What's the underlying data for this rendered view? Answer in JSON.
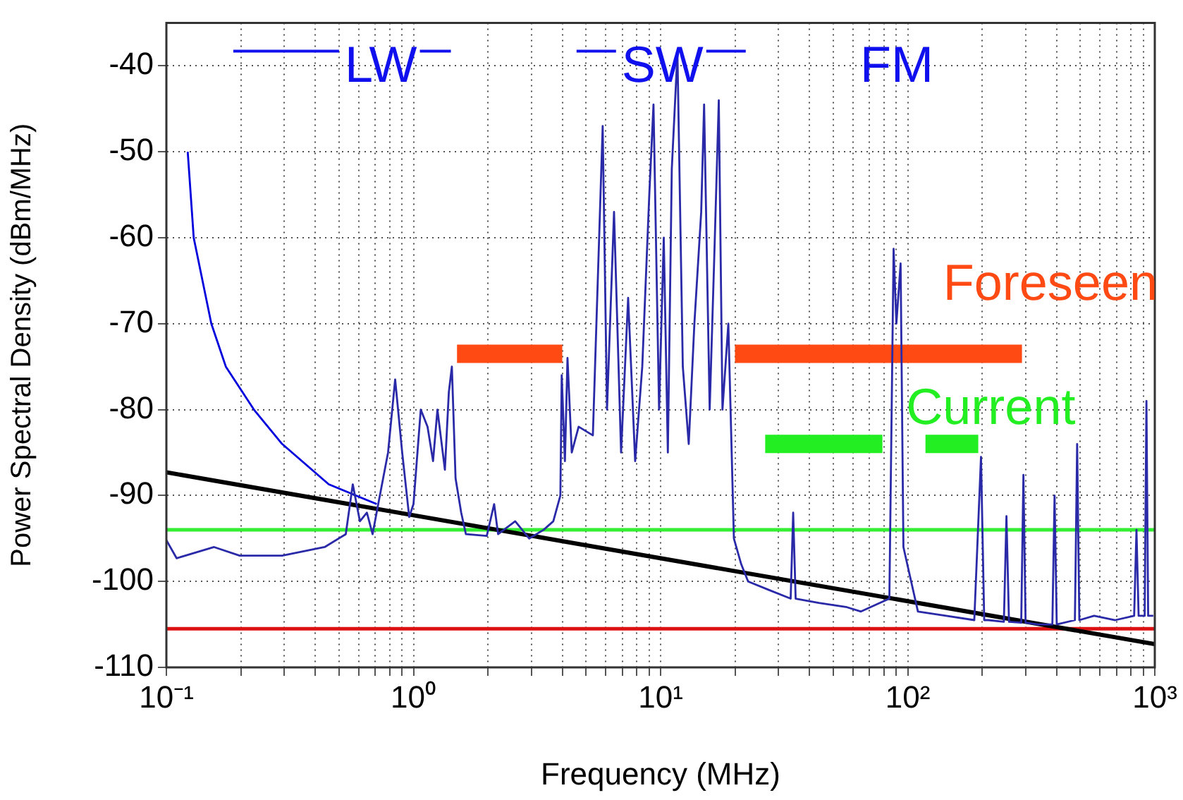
{
  "chart_data": {
    "type": "line",
    "xlabel": "Frequency (MHz)",
    "ylabel": "Power Spectral Density (dBm/MHz)",
    "log": "x",
    "grid": true,
    "legend": false,
    "marker": "none",
    "line_style": "solid",
    "xlim": [
      0.1,
      1000
    ],
    "ylim": [
      -110,
      -35
    ],
    "xticks": [
      {
        "value": 0.1,
        "label": "10⁻¹"
      },
      {
        "value": 0.2,
        "label": null
      },
      {
        "value": 0.3,
        "label": null
      },
      {
        "value": 0.4,
        "label": null
      },
      {
        "value": 0.5,
        "label": null
      },
      {
        "value": 0.6,
        "label": null
      },
      {
        "value": 0.7,
        "label": null
      },
      {
        "value": 0.8,
        "label": null
      },
      {
        "value": 0.9,
        "label": null
      },
      {
        "value": 1,
        "label": "10⁰"
      },
      {
        "value": 2,
        "label": null
      },
      {
        "value": 3,
        "label": null
      },
      {
        "value": 4,
        "label": null
      },
      {
        "value": 5,
        "label": null
      },
      {
        "value": 6,
        "label": null
      },
      {
        "value": 7,
        "label": null
      },
      {
        "value": 8,
        "label": null
      },
      {
        "value": 9,
        "label": null
      },
      {
        "value": 10,
        "label": "10¹"
      },
      {
        "value": 20,
        "label": null
      },
      {
        "value": 30,
        "label": null
      },
      {
        "value": 40,
        "label": null
      },
      {
        "value": 50,
        "label": null
      },
      {
        "value": 60,
        "label": null
      },
      {
        "value": 70,
        "label": null
      },
      {
        "value": 80,
        "label": null
      },
      {
        "value": 90,
        "label": null
      },
      {
        "value": 100,
        "label": "10²"
      },
      {
        "value": 200,
        "label": null
      },
      {
        "value": 300,
        "label": null
      },
      {
        "value": 400,
        "label": null
      },
      {
        "value": 500,
        "label": null
      },
      {
        "value": 600,
        "label": null
      },
      {
        "value": 700,
        "label": null
      },
      {
        "value": 800,
        "label": null
      },
      {
        "value": 900,
        "label": null
      },
      {
        "value": 1000,
        "label": "10³"
      }
    ],
    "yticks": [
      -110,
      -100,
      -90,
      -80,
      -70,
      -60,
      -50,
      -40
    ],
    "series": [
      {
        "color": "#2a2aa8",
        "x": [
          0.1,
          0.11,
          0.156,
          0.198,
          0.294,
          0.437,
          0.532,
          0.568,
          0.607,
          0.648,
          0.683,
          0.72,
          0.789,
          0.843,
          0.9,
          0.961,
          1.0,
          1.07,
          1.14,
          1.2,
          1.25,
          1.34,
          1.39,
          1.43,
          1.48,
          1.56,
          1.63,
          1.98,
          2.12,
          2.2,
          2.58,
          2.94,
          3.36,
          3.68,
          3.93,
          3.98,
          4.1,
          4.2,
          4.37,
          4.66,
          5.32,
          5.83,
          6.07,
          6.48,
          6.92,
          7.39,
          7.89,
          8.43,
          9.0,
          9.36,
          9.86,
          10.3,
          10.7,
          11.1,
          11.7,
          12.3,
          13.0,
          13.7,
          14.6,
          15.0,
          15.8,
          16.5,
          17.2,
          17.8,
          18.8,
          19.8,
          21.2,
          22.6,
          27.5,
          33.6,
          34.4,
          35.2,
          43.7,
          56.8,
          64.7,
          84.3,
          87.7,
          90.0,
          93.6,
          96.1,
          110,
          143,
          186,
          198,
          204,
          212,
          245,
          251,
          257,
          288,
          294,
          300,
          336,
          385,
          393,
          401,
          475,
          485,
          495,
          568,
          692,
          825,
          843,
          860,
          910,
          925,
          940,
          986
        ],
        "values": [
          -95.2,
          -97.3,
          -96,
          -97,
          -97,
          -96,
          -94.5,
          -88.7,
          -93,
          -92,
          -94.5,
          -91,
          -85,
          -76.5,
          -85,
          -92.5,
          -91,
          -80,
          -82,
          -86,
          -80,
          -87,
          -78,
          -75,
          -88,
          -92,
          -94.5,
          -94.7,
          -91,
          -94.5,
          -93,
          -95,
          -94,
          -93,
          -90,
          -76,
          -86,
          -74,
          -85,
          -82,
          -83,
          -47,
          -80,
          -57,
          -85,
          -67,
          -86,
          -75,
          -55,
          -44.5,
          -80,
          -60,
          -85,
          -52,
          -38.5,
          -75,
          -84,
          -70,
          -57,
          -44.5,
          -80,
          -62,
          -44,
          -80,
          -70,
          -95,
          -98,
          -100,
          -101,
          -102,
          -92,
          -102,
          -102.5,
          -103,
          -103.5,
          -102,
          -61.3,
          -70,
          -63,
          -96,
          -103.5,
          -104,
          -104.5,
          -85.5,
          -104.5,
          -104.5,
          -104.7,
          -92.4,
          -104.7,
          -104.8,
          -87.6,
          -104.8,
          -105,
          -105,
          -90,
          -105,
          -104.5,
          -84,
          -104.5,
          -104,
          -104.5,
          -104,
          -94,
          -104,
          -104,
          -79,
          -104,
          -104
        ]
      },
      {
        "color": "#0000dd",
        "x": [
          0.122,
          0.129,
          0.152,
          0.174,
          0.226,
          0.294,
          0.454,
          0.71
        ],
        "values": [
          -50,
          -60,
          -70,
          -75,
          -80,
          -84,
          -88.7,
          -91
        ]
      },
      {
        "color": "#000000",
        "x": [
          0.1,
          1000
        ],
        "values": [
          -87.3,
          -107.3
        ]
      },
      {
        "name": "Foreseen",
        "color": "#ff4a14",
        "x": [
          1.5,
          4,
          10,
          20,
          290
        ],
        "values": [
          -73.5,
          -73.5,
          null,
          -73.5,
          -73.5
        ]
      },
      {
        "name": "Current",
        "color": "#22ee22",
        "x": [
          26.5,
          79,
          100,
          118,
          193
        ],
        "values": [
          -84,
          -84,
          null,
          -84,
          -84
        ]
      }
    ],
    "ref_lines": [
      {
        "axis": "y",
        "value": -94,
        "color": "#33ee33"
      },
      {
        "axis": "y",
        "value": -105.5,
        "color": "#dd1111"
      }
    ],
    "annotations": [
      "LW",
      "SW",
      "FM"
    ]
  }
}
